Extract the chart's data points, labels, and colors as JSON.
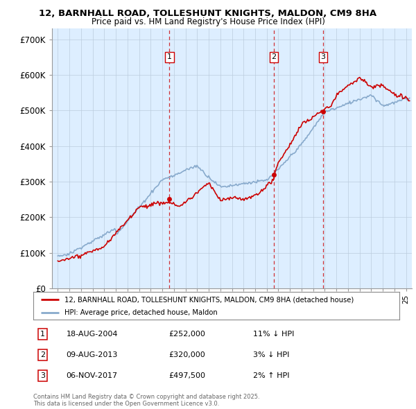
{
  "title": "12, BARNHALL ROAD, TOLLESHUNT KNIGHTS, MALDON, CM9 8HA",
  "subtitle": "Price paid vs. HM Land Registry's House Price Index (HPI)",
  "ylabel_ticks": [
    "£0",
    "£100K",
    "£200K",
    "£300K",
    "£400K",
    "£500K",
    "£600K",
    "£700K"
  ],
  "ylim": [
    0,
    730000
  ],
  "xlim_start": 1994.5,
  "xlim_end": 2025.5,
  "sale_dates": [
    2004.62,
    2013.61,
    2017.85
  ],
  "sale_prices": [
    252000,
    320000,
    497500
  ],
  "sale_labels": [
    "1",
    "2",
    "3"
  ],
  "sale_info": [
    {
      "num": "1",
      "date": "18-AUG-2004",
      "price": "£252,000",
      "pct": "11% ↓ HPI"
    },
    {
      "num": "2",
      "date": "09-AUG-2013",
      "price": "£320,000",
      "pct": "3% ↓ HPI"
    },
    {
      "num": "3",
      "date": "06-NOV-2017",
      "price": "£497,500",
      "pct": "2% ↑ HPI"
    }
  ],
  "legend_line1": "12, BARNHALL ROAD, TOLLESHUNT KNIGHTS, MALDON, CM9 8HA (detached house)",
  "legend_line2": "HPI: Average price, detached house, Maldon",
  "footer": "Contains HM Land Registry data © Crown copyright and database right 2025.\nThis data is licensed under the Open Government Licence v3.0.",
  "red_line_color": "#cc0000",
  "blue_line_color": "#88aacc",
  "background_color": "#ddeeff",
  "grid_color": "#bbccdd",
  "dashed_color": "#cc0000",
  "label_box_color": "#cc0000"
}
